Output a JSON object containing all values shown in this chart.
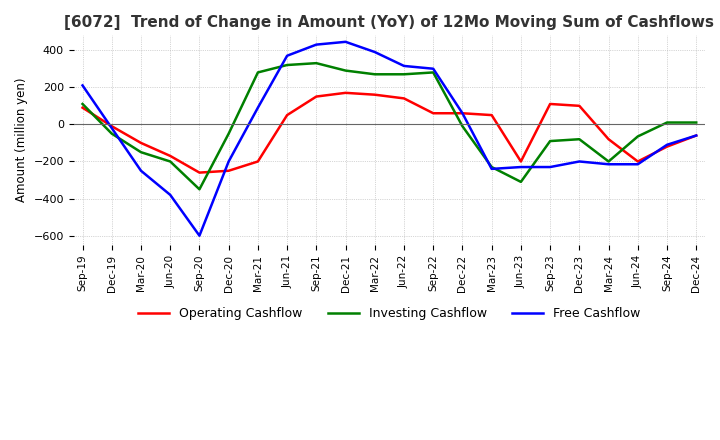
{
  "title": "[6072]  Trend of Change in Amount (YoY) of 12Mo Moving Sum of Cashflows",
  "ylabel": "Amount (million yen)",
  "ylim": [
    -650,
    480
  ],
  "yticks": [
    -600,
    -400,
    -200,
    0,
    200,
    400
  ],
  "x_labels": [
    "Sep-19",
    "Dec-19",
    "Mar-20",
    "Jun-20",
    "Sep-20",
    "Dec-20",
    "Mar-21",
    "Jun-21",
    "Sep-21",
    "Dec-21",
    "Mar-22",
    "Jun-22",
    "Sep-22",
    "Dec-22",
    "Mar-23",
    "Jun-23",
    "Sep-23",
    "Dec-23",
    "Mar-24",
    "Jun-24",
    "Sep-24",
    "Dec-24"
  ],
  "operating": [
    90,
    -10,
    -100,
    -170,
    -260,
    -250,
    -200,
    50,
    150,
    170,
    160,
    140,
    60,
    60,
    50,
    -200,
    110,
    100,
    -80,
    -200,
    -120,
    -60
  ],
  "investing": [
    110,
    -50,
    -150,
    -200,
    -350,
    -50,
    280,
    320,
    330,
    290,
    270,
    270,
    280,
    -10,
    -230,
    -310,
    -90,
    -80,
    -200,
    -65,
    10,
    10
  ],
  "free": [
    210,
    -20,
    -250,
    -380,
    -600,
    -200,
    90,
    370,
    430,
    445,
    390,
    315,
    300,
    60,
    -240,
    -230,
    -230,
    -200,
    -215,
    -215,
    -110,
    -60
  ],
  "operating_color": "#ff0000",
  "investing_color": "#008000",
  "free_color": "#0000ff",
  "background_color": "#ffffff",
  "grid_color": "#b0b0b0",
  "title_fontsize": 11,
  "legend_labels": [
    "Operating Cashflow",
    "Investing Cashflow",
    "Free Cashflow"
  ]
}
